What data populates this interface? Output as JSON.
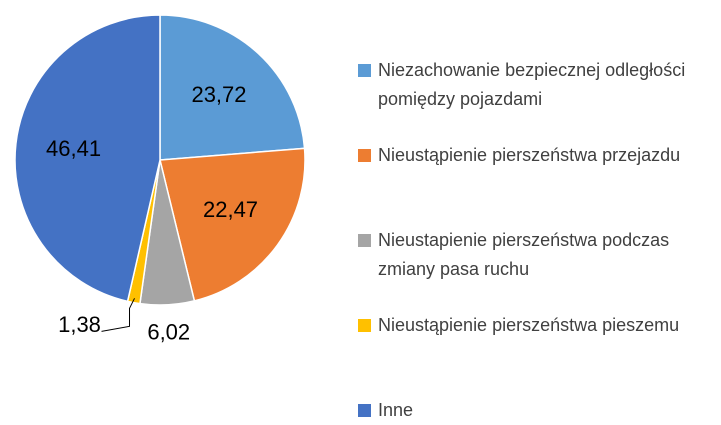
{
  "chart_data": {
    "type": "pie",
    "categories": [
      "Niezachowanie bezpiecznej odległości pomiędzy pojazdami",
      "Nieustąpienie pierszeństwa przejazdu",
      "Nieustapienie pierszeństwa podczas zmiany pasa ruchu",
      "Nieustąpienie pierszeństwa pieszemu",
      "Inne"
    ],
    "values": [
      23.72,
      22.47,
      6.02,
      1.38,
      46.41
    ],
    "value_labels": [
      "23,72",
      "22,47",
      "6,02",
      "1,38",
      "46,41"
    ],
    "colors": [
      "#5b9bd5",
      "#ed7d31",
      "#a5a5a5",
      "#ffc000",
      "#4472c4"
    ],
    "legend": "right"
  }
}
